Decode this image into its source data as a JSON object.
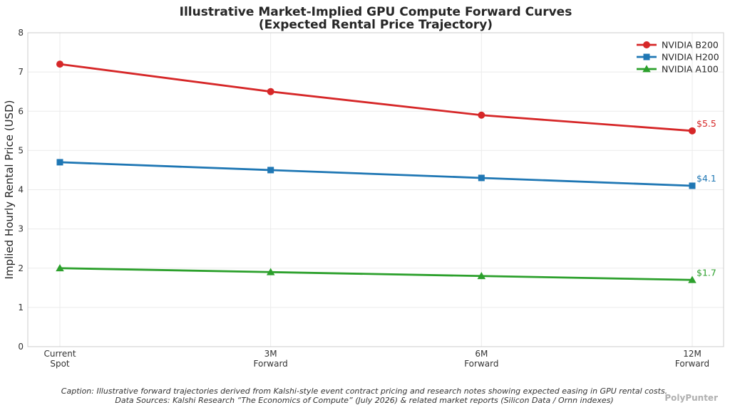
{
  "chart_data": {
    "type": "line",
    "title": "Illustrative Market-Implied GPU Compute Forward Curves",
    "subtitle": "(Expected Rental Price Trajectory)",
    "xlabel": "",
    "ylabel": "Implied Hourly Rental Price (USD)",
    "categories": [
      [
        "Current",
        "Spot"
      ],
      [
        "3M",
        "Forward"
      ],
      [
        "6M",
        "Forward"
      ],
      [
        "12M",
        "Forward"
      ]
    ],
    "ylim": [
      0,
      8
    ],
    "yticks": [
      0,
      1,
      2,
      3,
      4,
      5,
      6,
      7,
      8
    ],
    "grid": true,
    "legend_position": "top-right",
    "series": [
      {
        "name": "NVIDIA B200",
        "values": [
          7.2,
          6.5,
          5.9,
          5.5
        ],
        "color": "#d62728",
        "marker": "circle",
        "end_label": "$5.5"
      },
      {
        "name": "NVIDIA H200",
        "values": [
          4.7,
          4.5,
          4.3,
          4.1
        ],
        "color": "#1f77b4",
        "marker": "square",
        "end_label": "$4.1"
      },
      {
        "name": "NVIDIA A100",
        "values": [
          2.0,
          1.9,
          1.8,
          1.7
        ],
        "color": "#2ca02c",
        "marker": "triangle",
        "end_label": "$1.7"
      }
    ]
  },
  "caption": {
    "line1": "Caption: Illustrative forward trajectories derived from Kalshi-style event contract pricing and research notes showing expected easing in GPU rental costs.",
    "line2": "Data Sources: Kalshi Research “The Economics of Compute” (July 2026) & related market reports (Silicon Data / Ornn indexes)"
  },
  "watermark": "PolyPunter"
}
